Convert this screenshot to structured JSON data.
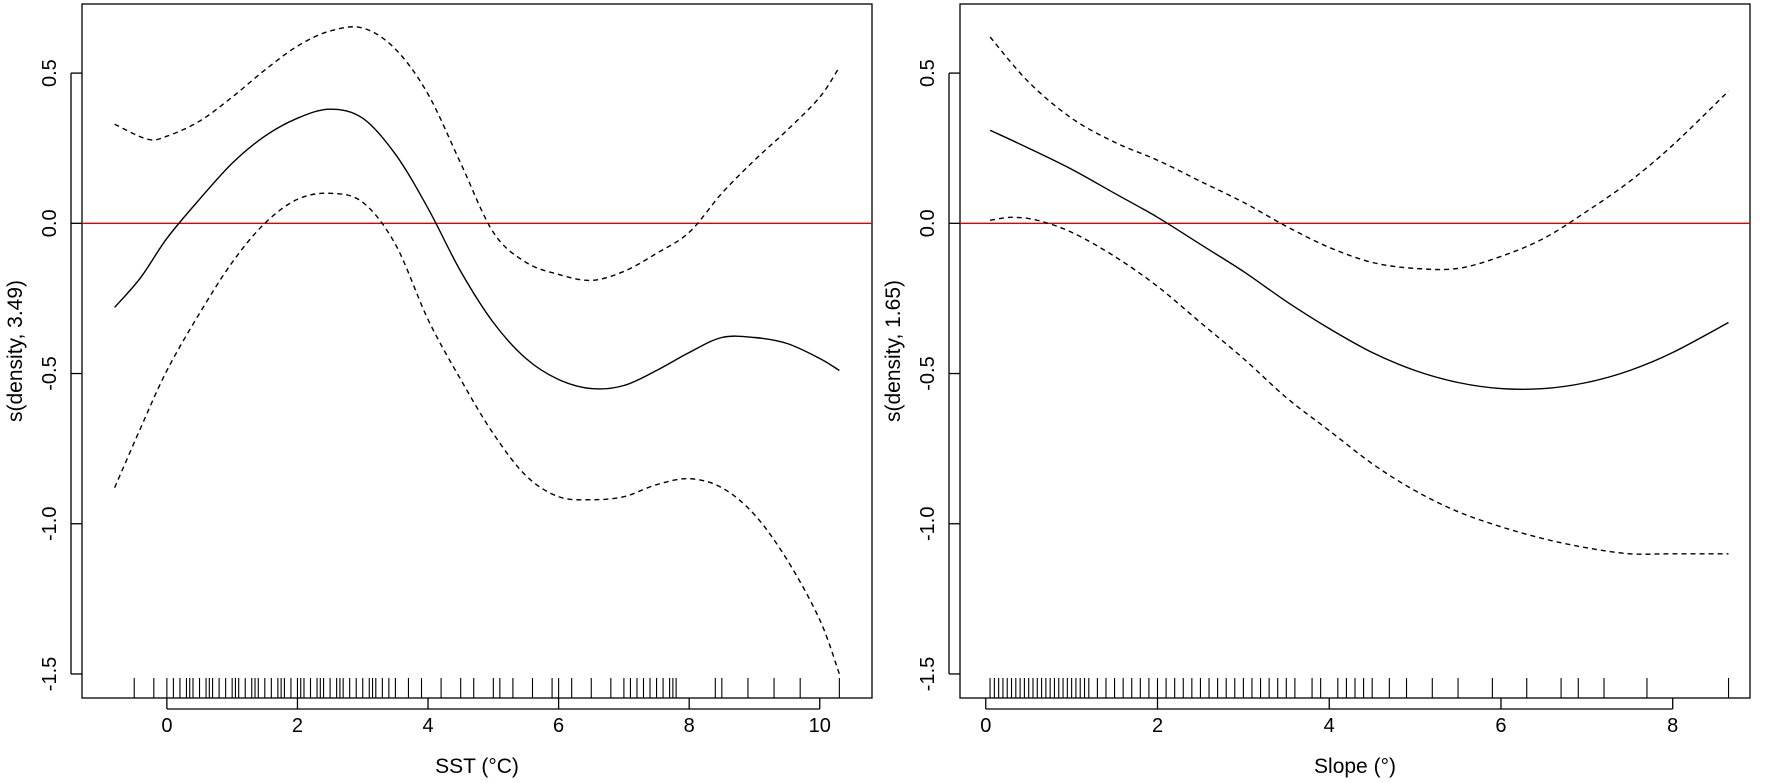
{
  "chart_data": [
    {
      "type": "line",
      "title": "",
      "xlabel": "SST (°C)",
      "ylabel": "s(density, 3.49)",
      "xlim": [
        -1.3,
        10.8
      ],
      "ylim": [
        -1.58,
        0.73
      ],
      "xticks": [
        "0",
        "2",
        "4",
        "6",
        "8",
        "10"
      ],
      "yticks": [
        "0.5",
        "0.0",
        "-0.5",
        "-1.0",
        "-1.5"
      ],
      "grid": false,
      "legend": "none",
      "reference_line": {
        "y": 0,
        "color": "#e00000"
      },
      "series": [
        {
          "style": "solid",
          "x": [
            -0.8,
            -0.4,
            0,
            0.5,
            1,
            1.5,
            2,
            2.5,
            3,
            3.5,
            4,
            4.5,
            5,
            5.5,
            6,
            6.5,
            7,
            7.5,
            8,
            8.5,
            9,
            9.5,
            10,
            10.3
          ],
          "y": [
            -0.28,
            -0.18,
            -0.05,
            0.08,
            0.2,
            0.29,
            0.35,
            0.38,
            0.35,
            0.23,
            0.05,
            -0.16,
            -0.33,
            -0.45,
            -0.52,
            -0.55,
            -0.54,
            -0.49,
            -0.43,
            -0.38,
            -0.38,
            -0.4,
            -0.45,
            -0.49
          ]
        },
        {
          "style": "dashed",
          "x": [
            -0.8,
            -0.3,
            0,
            0.5,
            1,
            1.5,
            2,
            2.5,
            3,
            3.5,
            4,
            4.5,
            5,
            5.5,
            6,
            6.5,
            7,
            7.5,
            8,
            8.5,
            9,
            9.5,
            10,
            10.3
          ],
          "y": [
            0.33,
            0.28,
            0.29,
            0.34,
            0.42,
            0.51,
            0.59,
            0.64,
            0.65,
            0.58,
            0.43,
            0.2,
            -0.03,
            -0.13,
            -0.17,
            -0.19,
            -0.16,
            -0.1,
            -0.03,
            0.1,
            0.21,
            0.31,
            0.42,
            0.52
          ]
        },
        {
          "style": "dashed",
          "x": [
            -0.8,
            -0.4,
            0,
            0.5,
            1,
            1.5,
            2,
            2.5,
            3,
            3.5,
            4,
            4.5,
            5,
            5.5,
            6,
            6.5,
            7,
            7.5,
            8,
            8.5,
            9,
            9.5,
            10,
            10.3
          ],
          "y": [
            -0.88,
            -0.68,
            -0.49,
            -0.3,
            -0.13,
            0.0,
            0.08,
            0.1,
            0.07,
            -0.07,
            -0.32,
            -0.52,
            -0.7,
            -0.84,
            -0.91,
            -0.92,
            -0.91,
            -0.87,
            -0.85,
            -0.88,
            -0.97,
            -1.12,
            -1.32,
            -1.5
          ]
        }
      ],
      "rug": [
        -0.5,
        -0.2,
        0,
        0.1,
        0.2,
        0.3,
        0.35,
        0.4,
        0.5,
        0.6,
        0.65,
        0.7,
        0.8,
        0.9,
        1.0,
        1.05,
        1.1,
        1.2,
        1.3,
        1.35,
        1.4,
        1.5,
        1.6,
        1.7,
        1.75,
        1.8,
        1.9,
        2.0,
        2.05,
        2.1,
        2.2,
        2.3,
        2.35,
        2.4,
        2.5,
        2.6,
        2.65,
        2.7,
        2.8,
        2.9,
        3.0,
        3.1,
        3.15,
        3.2,
        3.3,
        3.4,
        3.5,
        3.7,
        3.9,
        4.2,
        4.5,
        4.7,
        5.0,
        5.1,
        5.3,
        5.6,
        5.9,
        6.0,
        6.2,
        6.5,
        6.8,
        7.0,
        7.1,
        7.2,
        7.3,
        7.4,
        7.5,
        7.6,
        7.7,
        7.75,
        7.8,
        8.4,
        8.5,
        8.9,
        9.3,
        9.7,
        10.3
      ]
    },
    {
      "type": "line",
      "title": "",
      "xlabel": "Slope (°)",
      "ylabel": "s(density, 1.65)",
      "xlim": [
        -0.3,
        8.9
      ],
      "ylim": [
        -1.58,
        0.73
      ],
      "xticks": [
        "0",
        "2",
        "4",
        "6",
        "8"
      ],
      "yticks": [
        "0.5",
        "0.0",
        "-0.5",
        "-1.0",
        "-1.5"
      ],
      "grid": false,
      "legend": "none",
      "reference_line": {
        "y": 0,
        "color": "#e00000"
      },
      "series": [
        {
          "style": "solid",
          "x": [
            0.05,
            0.5,
            1,
            1.5,
            2,
            2.5,
            3,
            3.5,
            4,
            4.5,
            5,
            5.5,
            6,
            6.5,
            7,
            7.5,
            8,
            8.65
          ],
          "y": [
            0.31,
            0.25,
            0.18,
            0.1,
            0.02,
            -0.07,
            -0.16,
            -0.26,
            -0.35,
            -0.43,
            -0.49,
            -0.53,
            -0.55,
            -0.55,
            -0.53,
            -0.49,
            -0.43,
            -0.33
          ]
        },
        {
          "style": "dashed",
          "x": [
            0.05,
            0.5,
            1,
            1.5,
            2,
            2.5,
            3,
            3.5,
            4,
            4.5,
            5,
            5.5,
            6,
            6.5,
            7,
            7.5,
            8,
            8.65
          ],
          "y": [
            0.62,
            0.47,
            0.35,
            0.27,
            0.21,
            0.14,
            0.07,
            -0.01,
            -0.08,
            -0.13,
            -0.15,
            -0.15,
            -0.11,
            -0.05,
            0.04,
            0.14,
            0.26,
            0.44
          ]
        },
        {
          "style": "dashed",
          "x": [
            0.05,
            0.3,
            0.6,
            1,
            1.5,
            2,
            2.5,
            3,
            3.5,
            4,
            4.5,
            5,
            5.5,
            6,
            6.5,
            7,
            7.5,
            8,
            8.65
          ],
          "y": [
            0.01,
            0.02,
            0.01,
            -0.03,
            -0.11,
            -0.21,
            -0.33,
            -0.45,
            -0.58,
            -0.69,
            -0.8,
            -0.89,
            -0.96,
            -1.01,
            -1.05,
            -1.08,
            -1.1,
            -1.1,
            -1.1
          ]
        }
      ],
      "rug": [
        0.05,
        0.1,
        0.15,
        0.2,
        0.25,
        0.3,
        0.35,
        0.4,
        0.45,
        0.5,
        0.55,
        0.6,
        0.65,
        0.7,
        0.75,
        0.8,
        0.85,
        0.9,
        0.95,
        1.0,
        1.05,
        1.1,
        1.15,
        1.2,
        1.3,
        1.4,
        1.5,
        1.6,
        1.7,
        1.8,
        1.9,
        2.0,
        2.1,
        2.2,
        2.3,
        2.4,
        2.5,
        2.6,
        2.7,
        2.8,
        2.9,
        3.0,
        3.1,
        3.2,
        3.3,
        3.4,
        3.5,
        3.6,
        3.8,
        3.9,
        4.1,
        4.2,
        4.3,
        4.4,
        4.5,
        4.7,
        4.9,
        5.2,
        5.5,
        5.9,
        6.3,
        6.7,
        6.9,
        7.2,
        7.7,
        8.65
      ]
    }
  ]
}
